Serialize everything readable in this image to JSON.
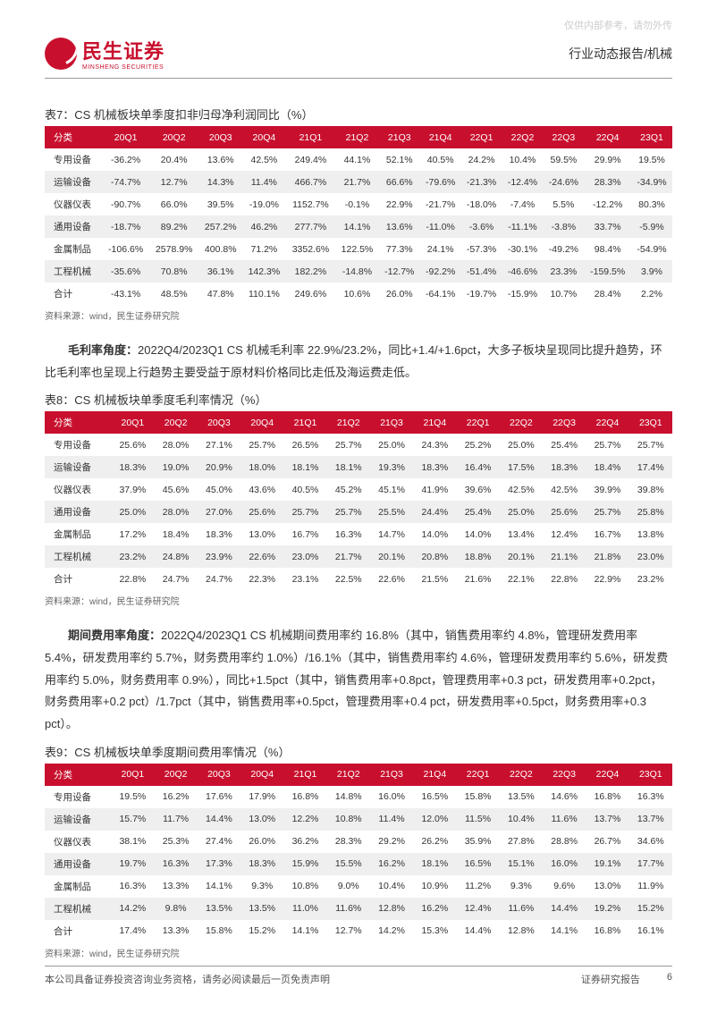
{
  "watermark": "仅供内部参考，请勿外传",
  "header": {
    "logo_main": "民生证券",
    "logo_sub": "MINSHENG SECURITIES",
    "right": "行业动态报告/机械"
  },
  "colors": {
    "brand_red": "#c8102e",
    "row_alt": "#efefef",
    "text": "#333333",
    "muted": "#666666",
    "border": "#999999"
  },
  "table7": {
    "title": "表7：CS 机械板块单季度扣非归母净利润同比（%）",
    "columns": [
      "分类",
      "20Q1",
      "20Q2",
      "20Q3",
      "20Q4",
      "21Q1",
      "21Q2",
      "21Q3",
      "21Q4",
      "22Q1",
      "22Q2",
      "22Q3",
      "22Q4",
      "23Q1"
    ],
    "rows": [
      [
        "专用设备",
        "-36.2%",
        "20.4%",
        "13.6%",
        "42.5%",
        "249.4%",
        "44.1%",
        "52.1%",
        "40.5%",
        "24.2%",
        "10.4%",
        "59.5%",
        "29.9%",
        "19.5%"
      ],
      [
        "运输设备",
        "-74.7%",
        "12.7%",
        "14.3%",
        "11.4%",
        "466.7%",
        "21.7%",
        "66.6%",
        "-79.6%",
        "-21.3%",
        "-12.4%",
        "-24.6%",
        "28.3%",
        "-34.9%"
      ],
      [
        "仪器仪表",
        "-90.7%",
        "66.0%",
        "39.5%",
        "-19.0%",
        "1152.7%",
        "-0.1%",
        "22.9%",
        "-21.7%",
        "-18.0%",
        "-7.4%",
        "5.5%",
        "-12.2%",
        "80.3%"
      ],
      [
        "通用设备",
        "-18.7%",
        "89.2%",
        "257.2%",
        "46.2%",
        "277.7%",
        "14.1%",
        "13.6%",
        "-11.0%",
        "-3.6%",
        "-11.1%",
        "-3.8%",
        "33.7%",
        "-5.9%"
      ],
      [
        "金属制品",
        "-106.6%",
        "2578.9%",
        "400.8%",
        "71.2%",
        "3352.6%",
        "122.5%",
        "77.3%",
        "24.1%",
        "-57.3%",
        "-30.1%",
        "-49.2%",
        "98.4%",
        "-54.9%"
      ],
      [
        "工程机械",
        "-35.6%",
        "70.8%",
        "36.1%",
        "142.3%",
        "182.2%",
        "-14.8%",
        "-12.7%",
        "-92.2%",
        "-51.4%",
        "-46.6%",
        "23.3%",
        "-159.5%",
        "3.9%"
      ],
      [
        "合计",
        "-43.1%",
        "48.5%",
        "47.8%",
        "110.1%",
        "249.6%",
        "10.6%",
        "26.0%",
        "-64.1%",
        "-19.7%",
        "-15.9%",
        "10.7%",
        "28.4%",
        "2.2%"
      ]
    ],
    "source": "资料来源：wind，民生证券研究院"
  },
  "para1_strong": "毛利率角度：",
  "para1": "2022Q4/2023Q1 CS 机械毛利率 22.9%/23.2%，同比+1.4/+1.6pct，大多子板块呈现同比提升趋势，环比毛利率也呈现上行趋势主要受益于原材料价格同比走低及海运费走低。",
  "table8": {
    "title": "表8：CS 机械板块单季度毛利率情况（%）",
    "columns": [
      "分类",
      "20Q1",
      "20Q2",
      "20Q3",
      "20Q4",
      "21Q1",
      "21Q2",
      "21Q3",
      "21Q4",
      "22Q1",
      "22Q2",
      "22Q3",
      "22Q4",
      "23Q1"
    ],
    "rows": [
      [
        "专用设备",
        "25.6%",
        "28.0%",
        "27.1%",
        "25.7%",
        "26.5%",
        "25.7%",
        "25.0%",
        "24.3%",
        "25.2%",
        "25.0%",
        "25.4%",
        "25.7%",
        "25.7%"
      ],
      [
        "运输设备",
        "18.3%",
        "19.0%",
        "20.9%",
        "18.0%",
        "18.1%",
        "18.1%",
        "19.3%",
        "18.3%",
        "16.4%",
        "17.5%",
        "18.3%",
        "18.4%",
        "17.4%"
      ],
      [
        "仪器仪表",
        "37.9%",
        "45.6%",
        "45.0%",
        "43.6%",
        "40.5%",
        "45.2%",
        "45.1%",
        "41.9%",
        "39.6%",
        "42.5%",
        "42.5%",
        "39.9%",
        "39.8%"
      ],
      [
        "通用设备",
        "25.0%",
        "28.0%",
        "27.0%",
        "25.6%",
        "25.7%",
        "25.7%",
        "25.5%",
        "24.4%",
        "25.4%",
        "25.0%",
        "25.6%",
        "25.7%",
        "25.8%"
      ],
      [
        "金属制品",
        "17.2%",
        "18.4%",
        "18.3%",
        "13.0%",
        "16.7%",
        "16.3%",
        "14.7%",
        "14.0%",
        "14.0%",
        "13.4%",
        "12.4%",
        "16.7%",
        "13.8%"
      ],
      [
        "工程机械",
        "23.2%",
        "24.8%",
        "23.9%",
        "22.6%",
        "23.0%",
        "21.7%",
        "20.1%",
        "20.8%",
        "18.8%",
        "20.1%",
        "21.1%",
        "21.8%",
        "23.0%"
      ],
      [
        "合计",
        "22.8%",
        "24.7%",
        "24.7%",
        "22.3%",
        "23.1%",
        "22.5%",
        "22.6%",
        "21.5%",
        "21.6%",
        "22.1%",
        "22.8%",
        "22.9%",
        "23.2%"
      ]
    ],
    "source": "资料来源：wind，民生证券研究院"
  },
  "para2_strong": "期间费用率角度：",
  "para2": "2022Q4/2023Q1 CS 机械期间费用率约 16.8%（其中，销售费用率约 4.8%，管理研发费用率 5.4%，研发费用率约 5.7%，财务费用率约 1.0%）/16.1%（其中，销售费用率约 4.6%，管理研发费用率约 5.6%，研发费用率约 5.0%，财务费用率 0.9%），同比+1.5pct（其中，销售费用率+0.8pct，管理费用率+0.3 pct，研发费用率+0.2pct，财务费用率+0.2 pct）/1.7pct（其中，销售费用率+0.5pct，管理费用率+0.4 pct，研发费用率+0.5pct，财务费用率+0.3 pct）。",
  "table9": {
    "title": "表9：CS 机械板块单季度期间费用率情况（%）",
    "columns": [
      "分类",
      "20Q1",
      "20Q2",
      "20Q3",
      "20Q4",
      "21Q1",
      "21Q2",
      "21Q3",
      "21Q4",
      "22Q1",
      "22Q2",
      "22Q3",
      "22Q4",
      "23Q1"
    ],
    "rows": [
      [
        "专用设备",
        "19.5%",
        "16.2%",
        "17.6%",
        "17.9%",
        "16.8%",
        "14.8%",
        "16.0%",
        "16.5%",
        "15.8%",
        "13.5%",
        "14.6%",
        "16.8%",
        "16.3%"
      ],
      [
        "运输设备",
        "15.7%",
        "11.7%",
        "14.4%",
        "13.0%",
        "12.2%",
        "10.8%",
        "11.4%",
        "12.0%",
        "11.5%",
        "10.4%",
        "11.6%",
        "13.7%",
        "13.7%"
      ],
      [
        "仪器仪表",
        "38.1%",
        "25.3%",
        "27.4%",
        "26.0%",
        "36.2%",
        "28.3%",
        "29.2%",
        "26.2%",
        "35.9%",
        "27.8%",
        "28.8%",
        "26.7%",
        "34.6%"
      ],
      [
        "通用设备",
        "19.7%",
        "16.3%",
        "17.3%",
        "18.3%",
        "15.9%",
        "15.5%",
        "16.2%",
        "18.1%",
        "16.5%",
        "15.1%",
        "16.0%",
        "19.1%",
        "17.7%"
      ],
      [
        "金属制品",
        "16.3%",
        "13.3%",
        "14.1%",
        "9.3%",
        "10.8%",
        "9.0%",
        "10.4%",
        "10.9%",
        "11.2%",
        "9.3%",
        "9.6%",
        "13.0%",
        "11.9%"
      ],
      [
        "工程机械",
        "14.2%",
        "9.8%",
        "13.5%",
        "13.5%",
        "11.0%",
        "11.6%",
        "12.8%",
        "16.2%",
        "12.4%",
        "11.6%",
        "14.4%",
        "19.2%",
        "15.2%"
      ],
      [
        "合计",
        "17.4%",
        "13.3%",
        "15.8%",
        "15.2%",
        "14.1%",
        "12.7%",
        "14.2%",
        "15.3%",
        "14.4%",
        "12.8%",
        "14.1%",
        "16.8%",
        "16.1%"
      ]
    ],
    "source": "资料来源：wind，民生证券研究院"
  },
  "footer": {
    "left": "本公司具备证券投资咨询业务资格，请务必阅读最后一页免责声明",
    "right": "证券研究报告",
    "page": "6"
  }
}
